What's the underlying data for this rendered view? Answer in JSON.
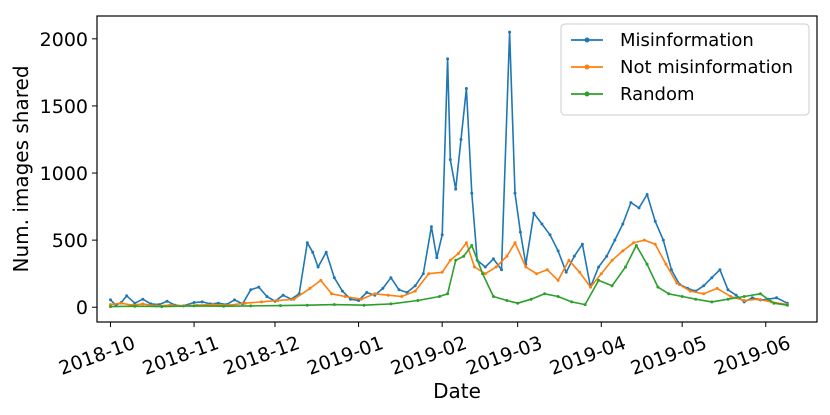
{
  "chart_data": {
    "type": "line",
    "xlabel": "Date",
    "ylabel": "Num. images shared",
    "x_ticks": [
      "2018-10",
      "2018-11",
      "2018-12",
      "2019-01",
      "2019-02",
      "2019-03",
      "2019-04",
      "2019-05",
      "2019-06"
    ],
    "y_ticks": [
      0,
      500,
      1000,
      1500,
      2000
    ],
    "xlim": [
      "2018-09-26",
      "2019-06-20"
    ],
    "ylim": [
      -110,
      2170
    ],
    "legend_position": "top-right",
    "grid": false,
    "series": [
      {
        "name": "Misinformation",
        "color": "#1f77b4",
        "points": [
          [
            "2018-10-01",
            55
          ],
          [
            "2018-10-03",
            15
          ],
          [
            "2018-10-05",
            35
          ],
          [
            "2018-10-07",
            85
          ],
          [
            "2018-10-10",
            30
          ],
          [
            "2018-10-13",
            60
          ],
          [
            "2018-10-16",
            25
          ],
          [
            "2018-10-19",
            20
          ],
          [
            "2018-10-22",
            45
          ],
          [
            "2018-10-25",
            15
          ],
          [
            "2018-10-28",
            10
          ],
          [
            "2018-11-01",
            35
          ],
          [
            "2018-11-04",
            40
          ],
          [
            "2018-11-07",
            25
          ],
          [
            "2018-11-10",
            30
          ],
          [
            "2018-11-13",
            20
          ],
          [
            "2018-11-16",
            55
          ],
          [
            "2018-11-19",
            25
          ],
          [
            "2018-11-22",
            130
          ],
          [
            "2018-11-25",
            150
          ],
          [
            "2018-11-28",
            80
          ],
          [
            "2018-12-01",
            45
          ],
          [
            "2018-12-04",
            90
          ],
          [
            "2018-12-07",
            60
          ],
          [
            "2018-12-10",
            100
          ],
          [
            "2018-12-13",
            480
          ],
          [
            "2018-12-15",
            410
          ],
          [
            "2018-12-17",
            300
          ],
          [
            "2018-12-20",
            410
          ],
          [
            "2018-12-23",
            220
          ],
          [
            "2018-12-26",
            120
          ],
          [
            "2018-12-29",
            60
          ],
          [
            "2019-01-01",
            50
          ],
          [
            "2019-01-04",
            110
          ],
          [
            "2019-01-07",
            90
          ],
          [
            "2019-01-10",
            140
          ],
          [
            "2019-01-13",
            220
          ],
          [
            "2019-01-16",
            130
          ],
          [
            "2019-01-19",
            110
          ],
          [
            "2019-01-22",
            160
          ],
          [
            "2019-01-25",
            250
          ],
          [
            "2019-01-28",
            600
          ],
          [
            "2019-01-30",
            370
          ],
          [
            "2019-02-01",
            540
          ],
          [
            "2019-02-03",
            1850
          ],
          [
            "2019-02-04",
            1100
          ],
          [
            "2019-02-06",
            880
          ],
          [
            "2019-02-08",
            1250
          ],
          [
            "2019-02-10",
            1630
          ],
          [
            "2019-02-12",
            850
          ],
          [
            "2019-02-14",
            350
          ],
          [
            "2019-02-17",
            300
          ],
          [
            "2019-02-20",
            360
          ],
          [
            "2019-02-23",
            280
          ],
          [
            "2019-02-26",
            2050
          ],
          [
            "2019-02-28",
            850
          ],
          [
            "2019-03-02",
            560
          ],
          [
            "2019-03-04",
            320
          ],
          [
            "2019-03-07",
            700
          ],
          [
            "2019-03-10",
            620
          ],
          [
            "2019-03-13",
            540
          ],
          [
            "2019-03-16",
            420
          ],
          [
            "2019-03-19",
            260
          ],
          [
            "2019-03-22",
            380
          ],
          [
            "2019-03-25",
            470
          ],
          [
            "2019-03-28",
            150
          ],
          [
            "2019-03-31",
            300
          ],
          [
            "2019-04-03",
            380
          ],
          [
            "2019-04-06",
            500
          ],
          [
            "2019-04-09",
            620
          ],
          [
            "2019-04-12",
            780
          ],
          [
            "2019-04-15",
            740
          ],
          [
            "2019-04-18",
            840
          ],
          [
            "2019-04-21",
            640
          ],
          [
            "2019-04-24",
            500
          ],
          [
            "2019-04-27",
            280
          ],
          [
            "2019-04-30",
            170
          ],
          [
            "2019-05-03",
            140
          ],
          [
            "2019-05-06",
            120
          ],
          [
            "2019-05-09",
            160
          ],
          [
            "2019-05-12",
            220
          ],
          [
            "2019-05-15",
            280
          ],
          [
            "2019-05-18",
            130
          ],
          [
            "2019-05-21",
            90
          ],
          [
            "2019-05-24",
            40
          ],
          [
            "2019-05-27",
            70
          ],
          [
            "2019-05-30",
            55
          ],
          [
            "2019-06-02",
            60
          ],
          [
            "2019-06-05",
            70
          ],
          [
            "2019-06-09",
            30
          ]
        ]
      },
      {
        "name": "Not misinformation",
        "color": "#ff7f0e",
        "points": [
          [
            "2018-10-01",
            20
          ],
          [
            "2018-10-05",
            30
          ],
          [
            "2018-10-09",
            15
          ],
          [
            "2018-10-13",
            25
          ],
          [
            "2018-10-18",
            10
          ],
          [
            "2018-10-23",
            15
          ],
          [
            "2018-10-28",
            10
          ],
          [
            "2018-11-02",
            15
          ],
          [
            "2018-11-08",
            20
          ],
          [
            "2018-11-14",
            15
          ],
          [
            "2018-11-20",
            30
          ],
          [
            "2018-11-26",
            40
          ],
          [
            "2018-12-02",
            50
          ],
          [
            "2018-12-08",
            60
          ],
          [
            "2018-12-14",
            140
          ],
          [
            "2018-12-18",
            200
          ],
          [
            "2018-12-22",
            100
          ],
          [
            "2018-12-27",
            80
          ],
          [
            "2019-01-02",
            60
          ],
          [
            "2019-01-07",
            100
          ],
          [
            "2019-01-12",
            90
          ],
          [
            "2019-01-17",
            80
          ],
          [
            "2019-01-22",
            120
          ],
          [
            "2019-01-27",
            250
          ],
          [
            "2019-02-01",
            260
          ],
          [
            "2019-02-04",
            350
          ],
          [
            "2019-02-07",
            400
          ],
          [
            "2019-02-10",
            480
          ],
          [
            "2019-02-13",
            300
          ],
          [
            "2019-02-17",
            250
          ],
          [
            "2019-02-21",
            300
          ],
          [
            "2019-02-25",
            380
          ],
          [
            "2019-02-28",
            480
          ],
          [
            "2019-03-04",
            300
          ],
          [
            "2019-03-08",
            250
          ],
          [
            "2019-03-12",
            280
          ],
          [
            "2019-03-16",
            200
          ],
          [
            "2019-03-20",
            350
          ],
          [
            "2019-03-24",
            260
          ],
          [
            "2019-03-28",
            150
          ],
          [
            "2019-04-01",
            250
          ],
          [
            "2019-04-05",
            350
          ],
          [
            "2019-04-09",
            420
          ],
          [
            "2019-04-13",
            480
          ],
          [
            "2019-04-17",
            500
          ],
          [
            "2019-04-21",
            470
          ],
          [
            "2019-04-25",
            320
          ],
          [
            "2019-04-29",
            180
          ],
          [
            "2019-05-04",
            120
          ],
          [
            "2019-05-09",
            100
          ],
          [
            "2019-05-14",
            140
          ],
          [
            "2019-05-19",
            80
          ],
          [
            "2019-05-24",
            50
          ],
          [
            "2019-05-29",
            60
          ],
          [
            "2019-06-03",
            40
          ],
          [
            "2019-06-09",
            20
          ]
        ]
      },
      {
        "name": "Random",
        "color": "#2ca02c",
        "points": [
          [
            "2018-10-01",
            5
          ],
          [
            "2018-10-10",
            8
          ],
          [
            "2018-10-20",
            5
          ],
          [
            "2018-11-01",
            10
          ],
          [
            "2018-11-12",
            8
          ],
          [
            "2018-11-22",
            10
          ],
          [
            "2018-12-03",
            12
          ],
          [
            "2018-12-13",
            15
          ],
          [
            "2018-12-23",
            20
          ],
          [
            "2019-01-03",
            15
          ],
          [
            "2019-01-13",
            25
          ],
          [
            "2019-01-23",
            50
          ],
          [
            "2019-01-31",
            80
          ],
          [
            "2019-02-03",
            100
          ],
          [
            "2019-02-06",
            350
          ],
          [
            "2019-02-09",
            380
          ],
          [
            "2019-02-12",
            460
          ],
          [
            "2019-02-16",
            250
          ],
          [
            "2019-02-20",
            80
          ],
          [
            "2019-02-25",
            50
          ],
          [
            "2019-03-01",
            30
          ],
          [
            "2019-03-06",
            60
          ],
          [
            "2019-03-11",
            100
          ],
          [
            "2019-03-16",
            80
          ],
          [
            "2019-03-21",
            40
          ],
          [
            "2019-03-26",
            20
          ],
          [
            "2019-03-31",
            200
          ],
          [
            "2019-04-05",
            160
          ],
          [
            "2019-04-10",
            300
          ],
          [
            "2019-04-14",
            460
          ],
          [
            "2019-04-18",
            320
          ],
          [
            "2019-04-22",
            150
          ],
          [
            "2019-04-26",
            100
          ],
          [
            "2019-05-01",
            80
          ],
          [
            "2019-05-06",
            60
          ],
          [
            "2019-05-12",
            40
          ],
          [
            "2019-05-18",
            60
          ],
          [
            "2019-05-24",
            80
          ],
          [
            "2019-05-30",
            100
          ],
          [
            "2019-06-04",
            30
          ],
          [
            "2019-06-09",
            15
          ]
        ]
      }
    ]
  }
}
